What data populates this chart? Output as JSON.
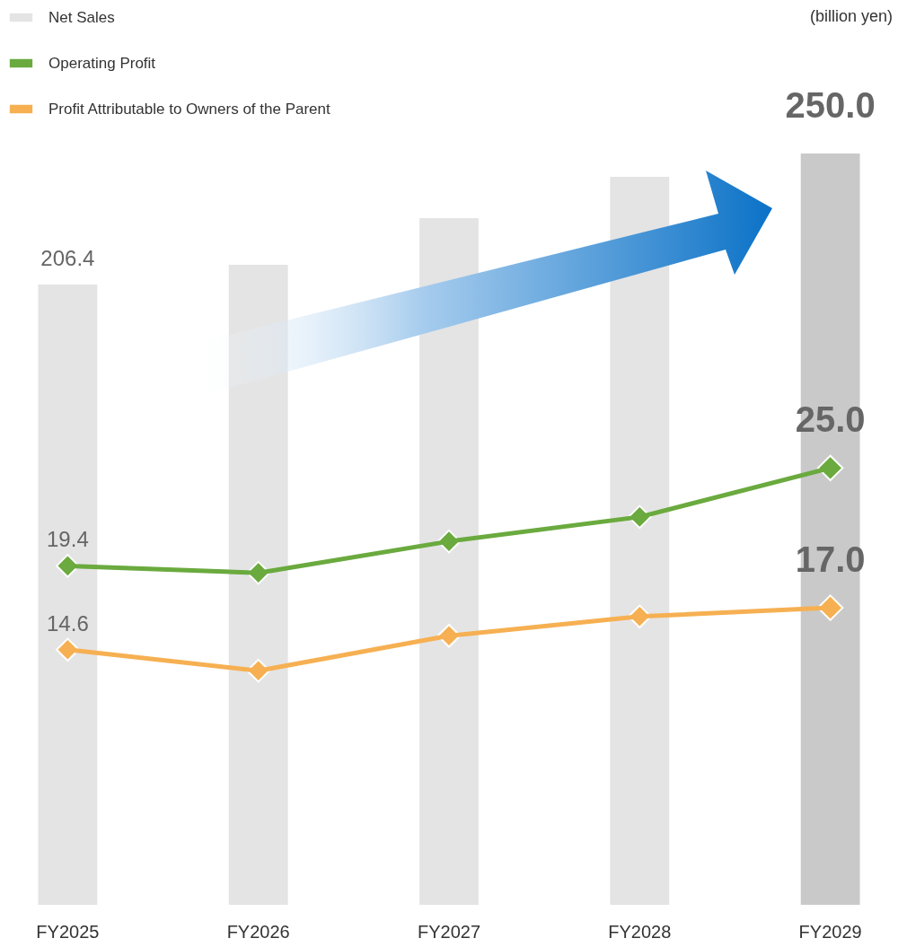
{
  "chart_data": {
    "type": "bar",
    "categories": [
      "FY2025",
      "FY2026",
      "FY2027",
      "FY2028",
      "FY2029"
    ],
    "series": [
      {
        "name": "Net Sales",
        "color": "#e4e4e4",
        "colors": [
          "#e4e4e4",
          "#e4e4e4",
          "#e4e4e4",
          "#e4e4e4",
          "#c9c9c9"
        ],
        "values": [
          206.4,
          213.0,
          228.5,
          242.2,
          250.0
        ],
        "value_labels": [
          "206.4",
          null,
          null,
          null,
          "250.0"
        ]
      },
      {
        "name": "Operating Profit",
        "type": "line",
        "axis": "y2",
        "color": "#6aaa3e",
        "values": [
          19.4,
          19.0,
          20.8,
          22.2,
          25.0
        ],
        "value_labels": [
          "19.4",
          null,
          null,
          null,
          "25.0"
        ]
      },
      {
        "name": "Profit Attributable to Owners of the Parent",
        "type": "line",
        "axis": "y2",
        "color": "#f6b052",
        "values": [
          14.6,
          13.4,
          15.4,
          16.5,
          17.0
        ],
        "value_labels": [
          "14.6",
          null,
          null,
          null,
          "17.0"
        ]
      }
    ],
    "ylim": [
      0,
      250
    ],
    "y2lim": [
      0,
      43
    ],
    "marker": "diamond",
    "legend": "top left",
    "grid": false,
    "annotations": [
      "(billion yen)"
    ]
  }
}
